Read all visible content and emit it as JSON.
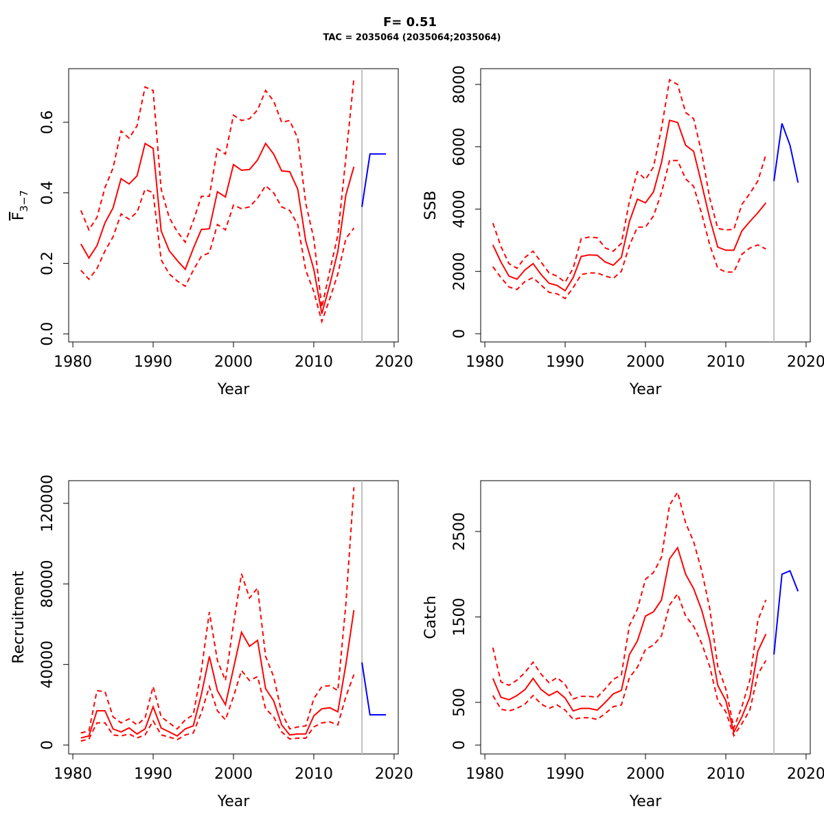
{
  "title": "F= 0.51",
  "subtitle": "TAC = 2035064 (2035064;2035064)",
  "chart_data": [
    {
      "type": "line",
      "xlabel": "Year",
      "ylabel": "F",
      "ylabel_subscript": "3−7",
      "xlim": [
        1979.48,
        2020.52
      ],
      "xticks": [
        1980,
        1990,
        2000,
        2010,
        2020
      ],
      "ylim": [
        -0.023,
        0.752
      ],
      "yticks": [
        {
          "value": 0,
          "label": "0.0"
        },
        0.2,
        0.4,
        0.6
      ],
      "vline": 2016,
      "x": [
        1981,
        1982,
        1983,
        1984,
        1985,
        1986,
        1987,
        1988,
        1989,
        1990,
        1991,
        1992,
        1993,
        1994,
        1995,
        1996,
        1997,
        1998,
        1999,
        2000,
        2001,
        2002,
        2003,
        2004,
        2005,
        2006,
        2007,
        2008,
        2009,
        2010,
        2011,
        2012,
        2013,
        2014,
        2015
      ],
      "series": [
        {
          "color": "#ff0000",
          "dashed": false,
          "values": [
            0.255,
            0.215,
            0.25,
            0.315,
            0.357,
            0.44,
            0.425,
            0.448,
            0.54,
            0.526,
            0.292,
            0.236,
            0.208,
            0.183,
            0.242,
            0.296,
            0.298,
            0.403,
            0.388,
            0.48,
            0.464,
            0.466,
            0.493,
            0.54,
            0.51,
            0.462,
            0.46,
            0.41,
            0.263,
            0.183,
            0.057,
            0.14,
            0.234,
            0.394,
            0.474
          ]
        },
        {
          "color": "#ff0000",
          "dashed": true,
          "values": [
            0.35,
            0.295,
            0.33,
            0.415,
            0.47,
            0.575,
            0.555,
            0.59,
            0.7,
            0.69,
            0.41,
            0.33,
            0.29,
            0.26,
            0.32,
            0.39,
            0.39,
            0.525,
            0.51,
            0.62,
            0.605,
            0.61,
            0.635,
            0.69,
            0.66,
            0.6,
            0.605,
            0.555,
            0.37,
            0.27,
            0.075,
            0.18,
            0.28,
            0.5,
            0.725
          ]
        },
        {
          "color": "#ff0000",
          "dashed": true,
          "values": [
            0.18,
            0.155,
            0.185,
            0.235,
            0.275,
            0.34,
            0.325,
            0.345,
            0.41,
            0.4,
            0.21,
            0.17,
            0.15,
            0.135,
            0.18,
            0.22,
            0.23,
            0.31,
            0.295,
            0.365,
            0.355,
            0.36,
            0.385,
            0.42,
            0.4,
            0.36,
            0.35,
            0.31,
            0.18,
            0.12,
            0.035,
            0.1,
            0.17,
            0.27,
            0.3
          ]
        },
        {
          "color": "#0000ff",
          "dashed": false,
          "x": [
            2016,
            2017,
            2018,
            2019
          ],
          "values": [
            0.36,
            0.51,
            0.51,
            0.51
          ]
        }
      ]
    },
    {
      "type": "line",
      "xlabel": "Year",
      "ylabel": "SSB",
      "xlim": [
        1979.48,
        2020.52
      ],
      "xticks": [
        1980,
        1990,
        2000,
        2010,
        2020
      ],
      "ylim": [
        -264,
        8506
      ],
      "yticks": [
        0,
        2000,
        4000,
        6000,
        8000
      ],
      "vline": 2016,
      "x": [
        1981,
        1982,
        1983,
        1984,
        1985,
        1986,
        1987,
        1988,
        1989,
        1990,
        1991,
        1992,
        1993,
        1994,
        1995,
        1996,
        1997,
        1998,
        1999,
        2000,
        2001,
        2002,
        2003,
        2004,
        2005,
        2006,
        2007,
        2008,
        2009,
        2010,
        2011,
        2012,
        2013,
        2014,
        2015
      ],
      "series": [
        {
          "color": "#ff0000",
          "dashed": false,
          "values": [
            2850,
            2300,
            1850,
            1750,
            2050,
            2250,
            1900,
            1620,
            1550,
            1380,
            1800,
            2480,
            2530,
            2520,
            2300,
            2200,
            2450,
            3600,
            4320,
            4200,
            4550,
            5500,
            6850,
            6780,
            6050,
            5850,
            4800,
            3700,
            2780,
            2680,
            2680,
            3300,
            3600,
            3880,
            4200
          ]
        },
        {
          "color": "#ff0000",
          "dashed": true,
          "values": [
            3550,
            2800,
            2250,
            2100,
            2450,
            2650,
            2300,
            1950,
            1850,
            1650,
            2100,
            3050,
            3100,
            3080,
            2750,
            2650,
            2900,
            4250,
            5200,
            4950,
            5350,
            6600,
            8150,
            8000,
            7100,
            6900,
            5800,
            4350,
            3380,
            3330,
            3350,
            4150,
            4500,
            4900,
            5750
          ]
        },
        {
          "color": "#ff0000",
          "dashed": true,
          "values": [
            2150,
            1800,
            1500,
            1420,
            1680,
            1800,
            1560,
            1330,
            1280,
            1130,
            1480,
            1900,
            1950,
            1950,
            1850,
            1780,
            2000,
            2830,
            3420,
            3420,
            3780,
            4530,
            5560,
            5560,
            4970,
            4730,
            3850,
            2850,
            2100,
            1980,
            1980,
            2550,
            2750,
            2850,
            2720
          ]
        },
        {
          "color": "#0000ff",
          "dashed": false,
          "x": [
            2016,
            2017,
            2018,
            2019
          ],
          "values": [
            4900,
            6750,
            6050,
            4850
          ]
        }
      ]
    },
    {
      "type": "line",
      "xlabel": "Year",
      "ylabel": "Recruitment",
      "xlim": [
        1979.48,
        2020.52
      ],
      "xticks": [
        1980,
        1990,
        2000,
        2010,
        2020
      ],
      "ylim": [
        -4430,
        131260
      ],
      "yticks": [
        0,
        40000,
        80000,
        120000
      ],
      "vline": 2016,
      "x": [
        1981,
        1982,
        1983,
        1984,
        1985,
        1986,
        1987,
        1988,
        1989,
        1990,
        1991,
        1992,
        1993,
        1994,
        1995,
        1996,
        1997,
        1998,
        1999,
        2000,
        2001,
        2002,
        2003,
        2004,
        2005,
        2006,
        2007,
        2008,
        2009,
        2010,
        2011,
        2012,
        2013,
        2014,
        2015
      ],
      "series": [
        {
          "color": "#ff0000",
          "dashed": false,
          "values": [
            3500,
            4500,
            17000,
            17000,
            8000,
            6500,
            8500,
            5500,
            8000,
            19000,
            8500,
            6500,
            4500,
            8000,
            9500,
            25000,
            44000,
            27000,
            20000,
            38000,
            56000,
            49000,
            52000,
            28000,
            22000,
            10000,
            5000,
            5500,
            5500,
            14500,
            18000,
            18500,
            16500,
            40000,
            67000
          ]
        },
        {
          "color": "#ff0000",
          "dashed": true,
          "values": [
            6000,
            7000,
            27000,
            26500,
            14000,
            11000,
            13000,
            10000,
            13500,
            29000,
            14000,
            11000,
            8000,
            12500,
            15000,
            37000,
            66000,
            42000,
            32000,
            60000,
            85000,
            73000,
            78000,
            44000,
            34000,
            16000,
            8000,
            9000,
            9500,
            23000,
            29000,
            29500,
            27000,
            70000,
            128000
          ]
        },
        {
          "color": "#ff0000",
          "dashed": true,
          "values": [
            2000,
            3000,
            11000,
            11000,
            5000,
            4500,
            5500,
            3500,
            5000,
            12000,
            5000,
            4000,
            2700,
            5000,
            6000,
            16000,
            29000,
            17000,
            12500,
            24000,
            37000,
            32000,
            34000,
            18000,
            14000,
            6500,
            3000,
            3400,
            3400,
            9000,
            11000,
            11500,
            10000,
            24000,
            35000
          ]
        },
        {
          "color": "#0000ff",
          "dashed": false,
          "x": [
            2016,
            2017,
            2018,
            2019
          ],
          "values": [
            41000,
            15000,
            15000,
            15000
          ]
        }
      ]
    },
    {
      "type": "line",
      "xlabel": "Year",
      "ylabel": "Catch",
      "xlim": [
        1979.48,
        2020.52
      ],
      "xticks": [
        1980,
        1990,
        2000,
        2010,
        2020
      ],
      "ylim": [
        -104,
        3095
      ],
      "yticks": [
        0,
        500,
        1500,
        2500
      ],
      "vline": 2016,
      "x": [
        1981,
        1982,
        1983,
        1984,
        1985,
        1986,
        1987,
        1988,
        1989,
        1990,
        1991,
        1992,
        1993,
        1994,
        1995,
        1996,
        1997,
        1998,
        1999,
        2000,
        2001,
        2002,
        2003,
        2004,
        2005,
        2006,
        2007,
        2008,
        2009,
        2010,
        2011,
        2012,
        2013,
        2014,
        2015
      ],
      "series": [
        {
          "color": "#ff0000",
          "dashed": false,
          "values": [
            780,
            560,
            530,
            580,
            650,
            780,
            650,
            580,
            630,
            550,
            400,
            430,
            430,
            410,
            500,
            600,
            640,
            1060,
            1220,
            1510,
            1560,
            1700,
            2180,
            2310,
            2000,
            1830,
            1580,
            1230,
            700,
            520,
            150,
            330,
            560,
            1100,
            1300
          ]
        },
        {
          "color": "#ff0000",
          "dashed": true,
          "values": [
            1140,
            740,
            700,
            760,
            850,
            970,
            830,
            730,
            790,
            710,
            540,
            570,
            570,
            560,
            660,
            770,
            820,
            1400,
            1590,
            1940,
            2020,
            2200,
            2810,
            2960,
            2600,
            2380,
            2040,
            1600,
            920,
            660,
            200,
            450,
            760,
            1460,
            1700
          ]
        },
        {
          "color": "#ff0000",
          "dashed": true,
          "values": [
            580,
            420,
            400,
            430,
            480,
            580,
            480,
            430,
            470,
            410,
            300,
            320,
            320,
            300,
            370,
            450,
            470,
            790,
            910,
            1120,
            1170,
            1280,
            1640,
            1770,
            1510,
            1390,
            1190,
            920,
            520,
            390,
            110,
            250,
            410,
            830,
            990
          ]
        },
        {
          "color": "#0000ff",
          "dashed": false,
          "x": [
            2016,
            2017,
            2018,
            2019
          ],
          "values": [
            1060,
            2000,
            2040,
            1800
          ]
        }
      ]
    }
  ]
}
